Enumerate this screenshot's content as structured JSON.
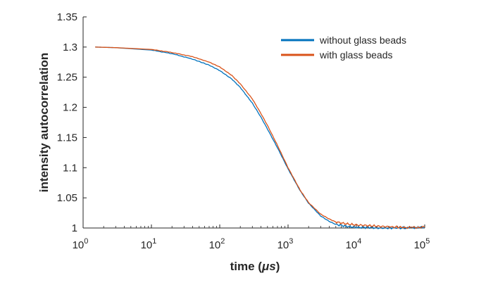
{
  "chart_data": {
    "type": "line",
    "xscale": "log",
    "xlim": [
      1,
      100000
    ],
    "ylim": [
      1,
      1.35
    ],
    "xlabel_prefix": "time (",
    "xlabel_unit": "μs",
    "xlabel_suffix": ")",
    "ylabel": "intensity autocorrelation",
    "x_tick_bases": [
      "10",
      "10",
      "10",
      "10",
      "10",
      "10"
    ],
    "x_tick_exponents": [
      "0",
      "1",
      "2",
      "3",
      "4",
      "5"
    ],
    "x_tick_values": [
      1,
      10,
      100,
      1000,
      10000,
      100000
    ],
    "y_tick_labels": [
      "1",
      "1.05",
      "1.1",
      "1.15",
      "1.2",
      "1.25",
      "1.3",
      "1.35"
    ],
    "y_tick_values": [
      1,
      1.05,
      1.1,
      1.15,
      1.2,
      1.25,
      1.3,
      1.35
    ],
    "grid": false,
    "legend_position": "top-right",
    "series": [
      {
        "name": "without glass beads",
        "color": "#0072BD",
        "x": [
          1.5,
          3,
          10,
          20,
          40,
          70,
          100,
          150,
          200,
          300,
          400,
          500,
          700,
          1000,
          1500,
          2000,
          3000,
          4000,
          5000,
          7000,
          10000,
          15000,
          20000,
          30000,
          50000,
          100000
        ],
        "y": [
          1.3,
          1.299,
          1.295,
          1.289,
          1.28,
          1.27,
          1.261,
          1.247,
          1.233,
          1.207,
          1.184,
          1.164,
          1.133,
          1.098,
          1.062,
          1.041,
          1.02,
          1.011,
          1.006,
          1.003,
          1.001,
          1.001,
          1.0,
          1.0,
          1.0,
          1.001
        ]
      },
      {
        "name": "with glass beads",
        "color": "#D95319",
        "x": [
          1.5,
          3,
          10,
          20,
          40,
          70,
          100,
          150,
          200,
          300,
          400,
          500,
          700,
          1000,
          1500,
          2000,
          3000,
          4000,
          5000,
          7000,
          10000,
          15000,
          20000,
          30000,
          50000,
          100000
        ],
        "y": [
          1.3,
          1.299,
          1.296,
          1.291,
          1.284,
          1.275,
          1.267,
          1.253,
          1.239,
          1.214,
          1.19,
          1.17,
          1.137,
          1.1,
          1.063,
          1.042,
          1.023,
          1.015,
          1.01,
          1.007,
          1.005,
          1.004,
          1.003,
          1.002,
          1.001,
          1.001
        ]
      }
    ]
  }
}
